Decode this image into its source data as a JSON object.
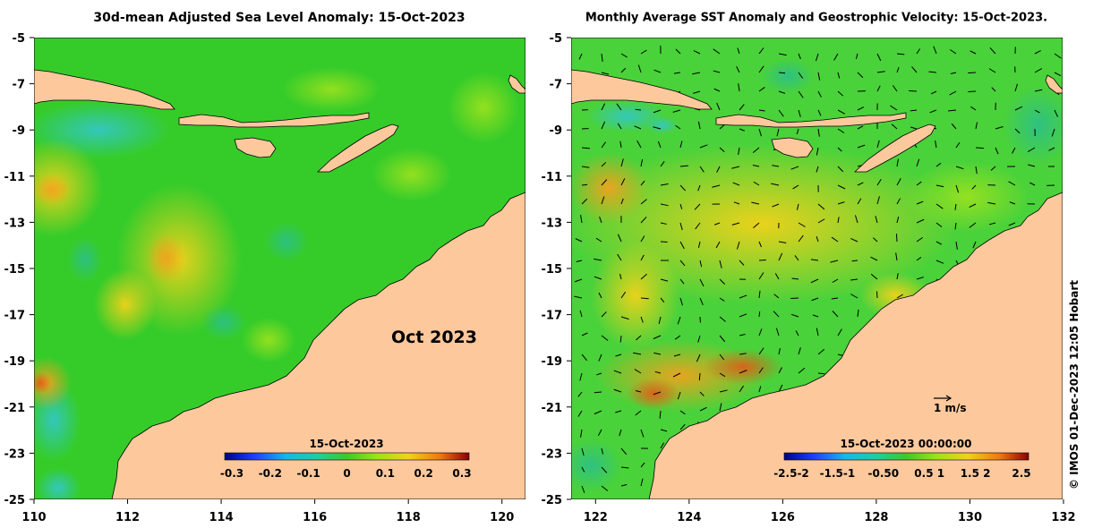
{
  "left_panel": {
    "title": "30d-mean Adjusted Sea Level Anomaly: 15-Oct-2023",
    "month_label": "Oct 2023",
    "colorbar": {
      "date": "15-Oct-2023",
      "ticks": [
        "-0.3",
        "-0.2",
        "-0.1",
        "0",
        "0.1",
        "0.2",
        "0.3"
      ]
    }
  },
  "right_panel": {
    "title": "Monthly Average SST Anomaly  and Geostrophic Velocity: 15-Oct-2023.",
    "reference_vector_label": "1 m/s",
    "colorbar": {
      "date": "15-Oct-2023 00:00:00",
      "ticks": [
        "-2.5-2",
        "-1.5-1",
        "-0.50",
        "0.5 1",
        "1.5 2",
        "2.5"
      ]
    }
  },
  "axes": {
    "lat_ticks": [
      "-5",
      "-7",
      "-9",
      "-11",
      "-13",
      "-15",
      "-17",
      "-19",
      "-21",
      "-23",
      "-25"
    ],
    "lon_ticks": [
      "110",
      "112",
      "114",
      "116",
      "118",
      "120",
      "122",
      "124",
      "126",
      "128",
      "130",
      "132"
    ]
  },
  "credit": "© IMOS 01-Dec-2023 12:05 Hobart",
  "colors": {
    "land": "#fcc89c",
    "ocean_base": "#35cc2a"
  }
}
